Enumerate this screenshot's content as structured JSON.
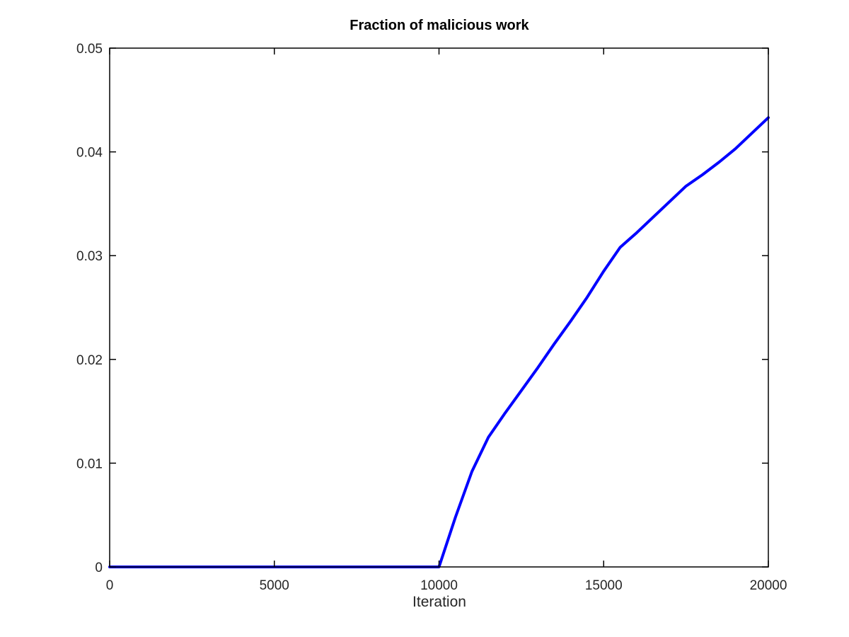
{
  "chart_data": {
    "type": "line",
    "title": "Fraction of malicious work",
    "xlabel": "Iteration",
    "ylabel": "",
    "xlim": [
      0,
      20000
    ],
    "ylim": [
      0,
      0.05
    ],
    "grid": false,
    "xticks": [
      0,
      5000,
      10000,
      15000,
      20000
    ],
    "xtick_labels": [
      "0",
      "5000",
      "10000",
      "15000",
      "20000"
    ],
    "yticks": [
      0,
      0.01,
      0.02,
      0.03,
      0.04,
      0.05
    ],
    "ytick_labels": [
      "0",
      "0.01",
      "0.02",
      "0.03",
      "0.04",
      "0.05"
    ],
    "series": [
      {
        "color": "#0000ff",
        "x": [
          0,
          2000,
          4000,
          6000,
          8000,
          10000,
          10500,
          11000,
          11500,
          12000,
          12500,
          13000,
          13500,
          14000,
          14500,
          15000,
          15500,
          16000,
          16500,
          17000,
          17500,
          18000,
          18500,
          19000,
          19500,
          20000
        ],
        "y": [
          0,
          0,
          0,
          0,
          0,
          0,
          0.0048,
          0.0092,
          0.0125,
          0.0148,
          0.017,
          0.0192,
          0.0215,
          0.0237,
          0.026,
          0.0285,
          0.0308,
          0.0322,
          0.0337,
          0.0352,
          0.0367,
          0.0378,
          0.039,
          0.0403,
          0.0418,
          0.0433
        ]
      }
    ]
  }
}
